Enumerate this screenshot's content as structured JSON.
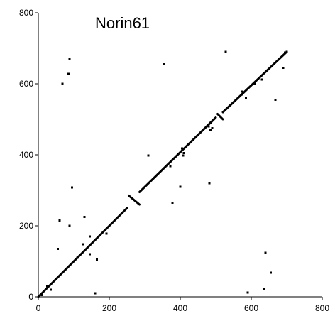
{
  "chart_data": {
    "type": "scatter",
    "title": "Norin61",
    "xlabel": "",
    "ylabel": "",
    "xlim": [
      0,
      800
    ],
    "ylim": [
      0,
      800
    ],
    "x_ticks": [
      "0",
      "200",
      "400",
      "600",
      "800"
    ],
    "y_ticks": [
      "0",
      "200",
      "400",
      "600",
      "800"
    ],
    "grid": false,
    "marker_color": "#000000",
    "diagonal_segments": [
      {
        "from": [
          0,
          0
        ],
        "to": [
          250,
          250
        ]
      },
      {
        "from": [
          285,
          295
        ],
        "to": [
          500,
          505
        ]
      },
      {
        "from": [
          520,
          520
        ],
        "to": [
          700,
          690
        ]
      }
    ],
    "inversion_segments": [
      {
        "from": [
          255,
          285
        ],
        "to": [
          285,
          260
        ]
      },
      {
        "from": [
          505,
          515
        ],
        "to": [
          520,
          500
        ]
      }
    ],
    "points": [
      [
        10,
        5
      ],
      [
        25,
        30
      ],
      [
        35,
        20
      ],
      [
        55,
        135
      ],
      [
        60,
        215
      ],
      [
        68,
        600
      ],
      [
        85,
        628
      ],
      [
        88,
        670
      ],
      [
        88,
        200
      ],
      [
        95,
        308
      ],
      [
        110,
        110
      ],
      [
        125,
        148
      ],
      [
        130,
        225
      ],
      [
        145,
        170
      ],
      [
        145,
        120
      ],
      [
        165,
        105
      ],
      [
        160,
        10
      ],
      [
        192,
        178
      ],
      [
        310,
        398
      ],
      [
        355,
        655
      ],
      [
        372,
        368
      ],
      [
        378,
        265
      ],
      [
        400,
        310
      ],
      [
        405,
        418
      ],
      [
        408,
        398
      ],
      [
        410,
        405
      ],
      [
        482,
        320
      ],
      [
        480,
        480
      ],
      [
        490,
        475
      ],
      [
        485,
        490
      ],
      [
        485,
        470
      ],
      [
        528,
        690
      ],
      [
        575,
        578
      ],
      [
        575,
        570
      ],
      [
        585,
        560
      ],
      [
        590,
        12
      ],
      [
        610,
        600
      ],
      [
        630,
        612
      ],
      [
        635,
        22
      ],
      [
        640,
        124
      ],
      [
        655,
        68
      ],
      [
        668,
        555
      ],
      [
        690,
        645
      ],
      [
        700,
        690
      ],
      [
        695,
        688
      ]
    ]
  }
}
